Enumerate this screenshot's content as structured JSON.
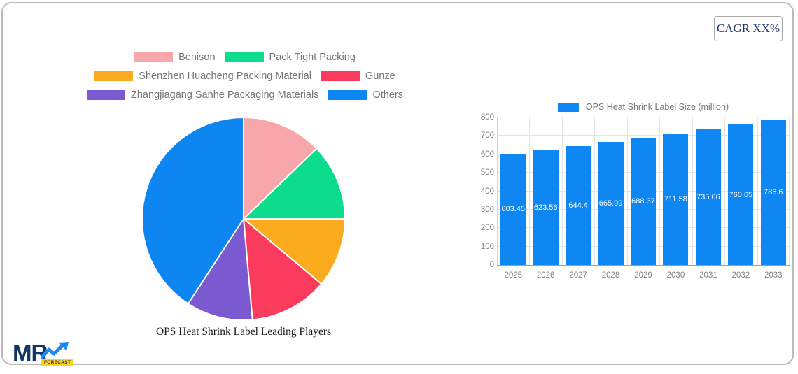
{
  "cagr": {
    "label": "CAGR XX%"
  },
  "logo": {
    "mr": "MR",
    "badge": "FORECAST"
  },
  "colors": {
    "bar_blue": "#0e87f2",
    "navy": "#14355f",
    "badge_yellow": "#ffd21c",
    "legend_text": "#757575",
    "axis_text": "#808080"
  },
  "chart_data": [
    {
      "type": "pie",
      "title": "OPS Heat Shrink Label Leading Players",
      "labels": [
        "Benison",
        "Pack Tight Packing",
        "Shenzhen Huacheng Packing Material",
        "Gunze",
        "Zhangjiagang Sanhe Packaging Materials",
        "Others"
      ],
      "values": [
        12.8,
        12.2,
        11.1,
        12.5,
        10.6,
        40.8
      ],
      "colors": [
        "#f7a6a9",
        "#0edc8d",
        "#fbab1e",
        "#fa3b5e",
        "#7a59d1",
        "#0d86f2"
      ],
      "legend_position": "top",
      "start_angle": "12 o'clock, clockwise",
      "units": "percent"
    },
    {
      "type": "bar",
      "legend": "OPS Heat Shrink Label Size (million)",
      "categories": [
        "2025",
        "2026",
        "2027",
        "2028",
        "2029",
        "2030",
        "2031",
        "2032",
        "2033"
      ],
      "values": [
        603.45,
        623.56,
        644.4,
        665.99,
        688.37,
        711.58,
        735.66,
        760.65,
        786.6
      ],
      "value_labels": [
        "603.45",
        "623.56",
        "644.4",
        "665.99",
        "688.37",
        "711.58",
        "735.66",
        "760.65",
        "786.6"
      ],
      "bar_color": "#0e87f2",
      "ylim": [
        0,
        800
      ],
      "yticks": [
        0,
        100,
        200,
        300,
        400,
        500,
        600,
        700,
        800
      ],
      "grid": true,
      "legend_position": "top"
    }
  ]
}
